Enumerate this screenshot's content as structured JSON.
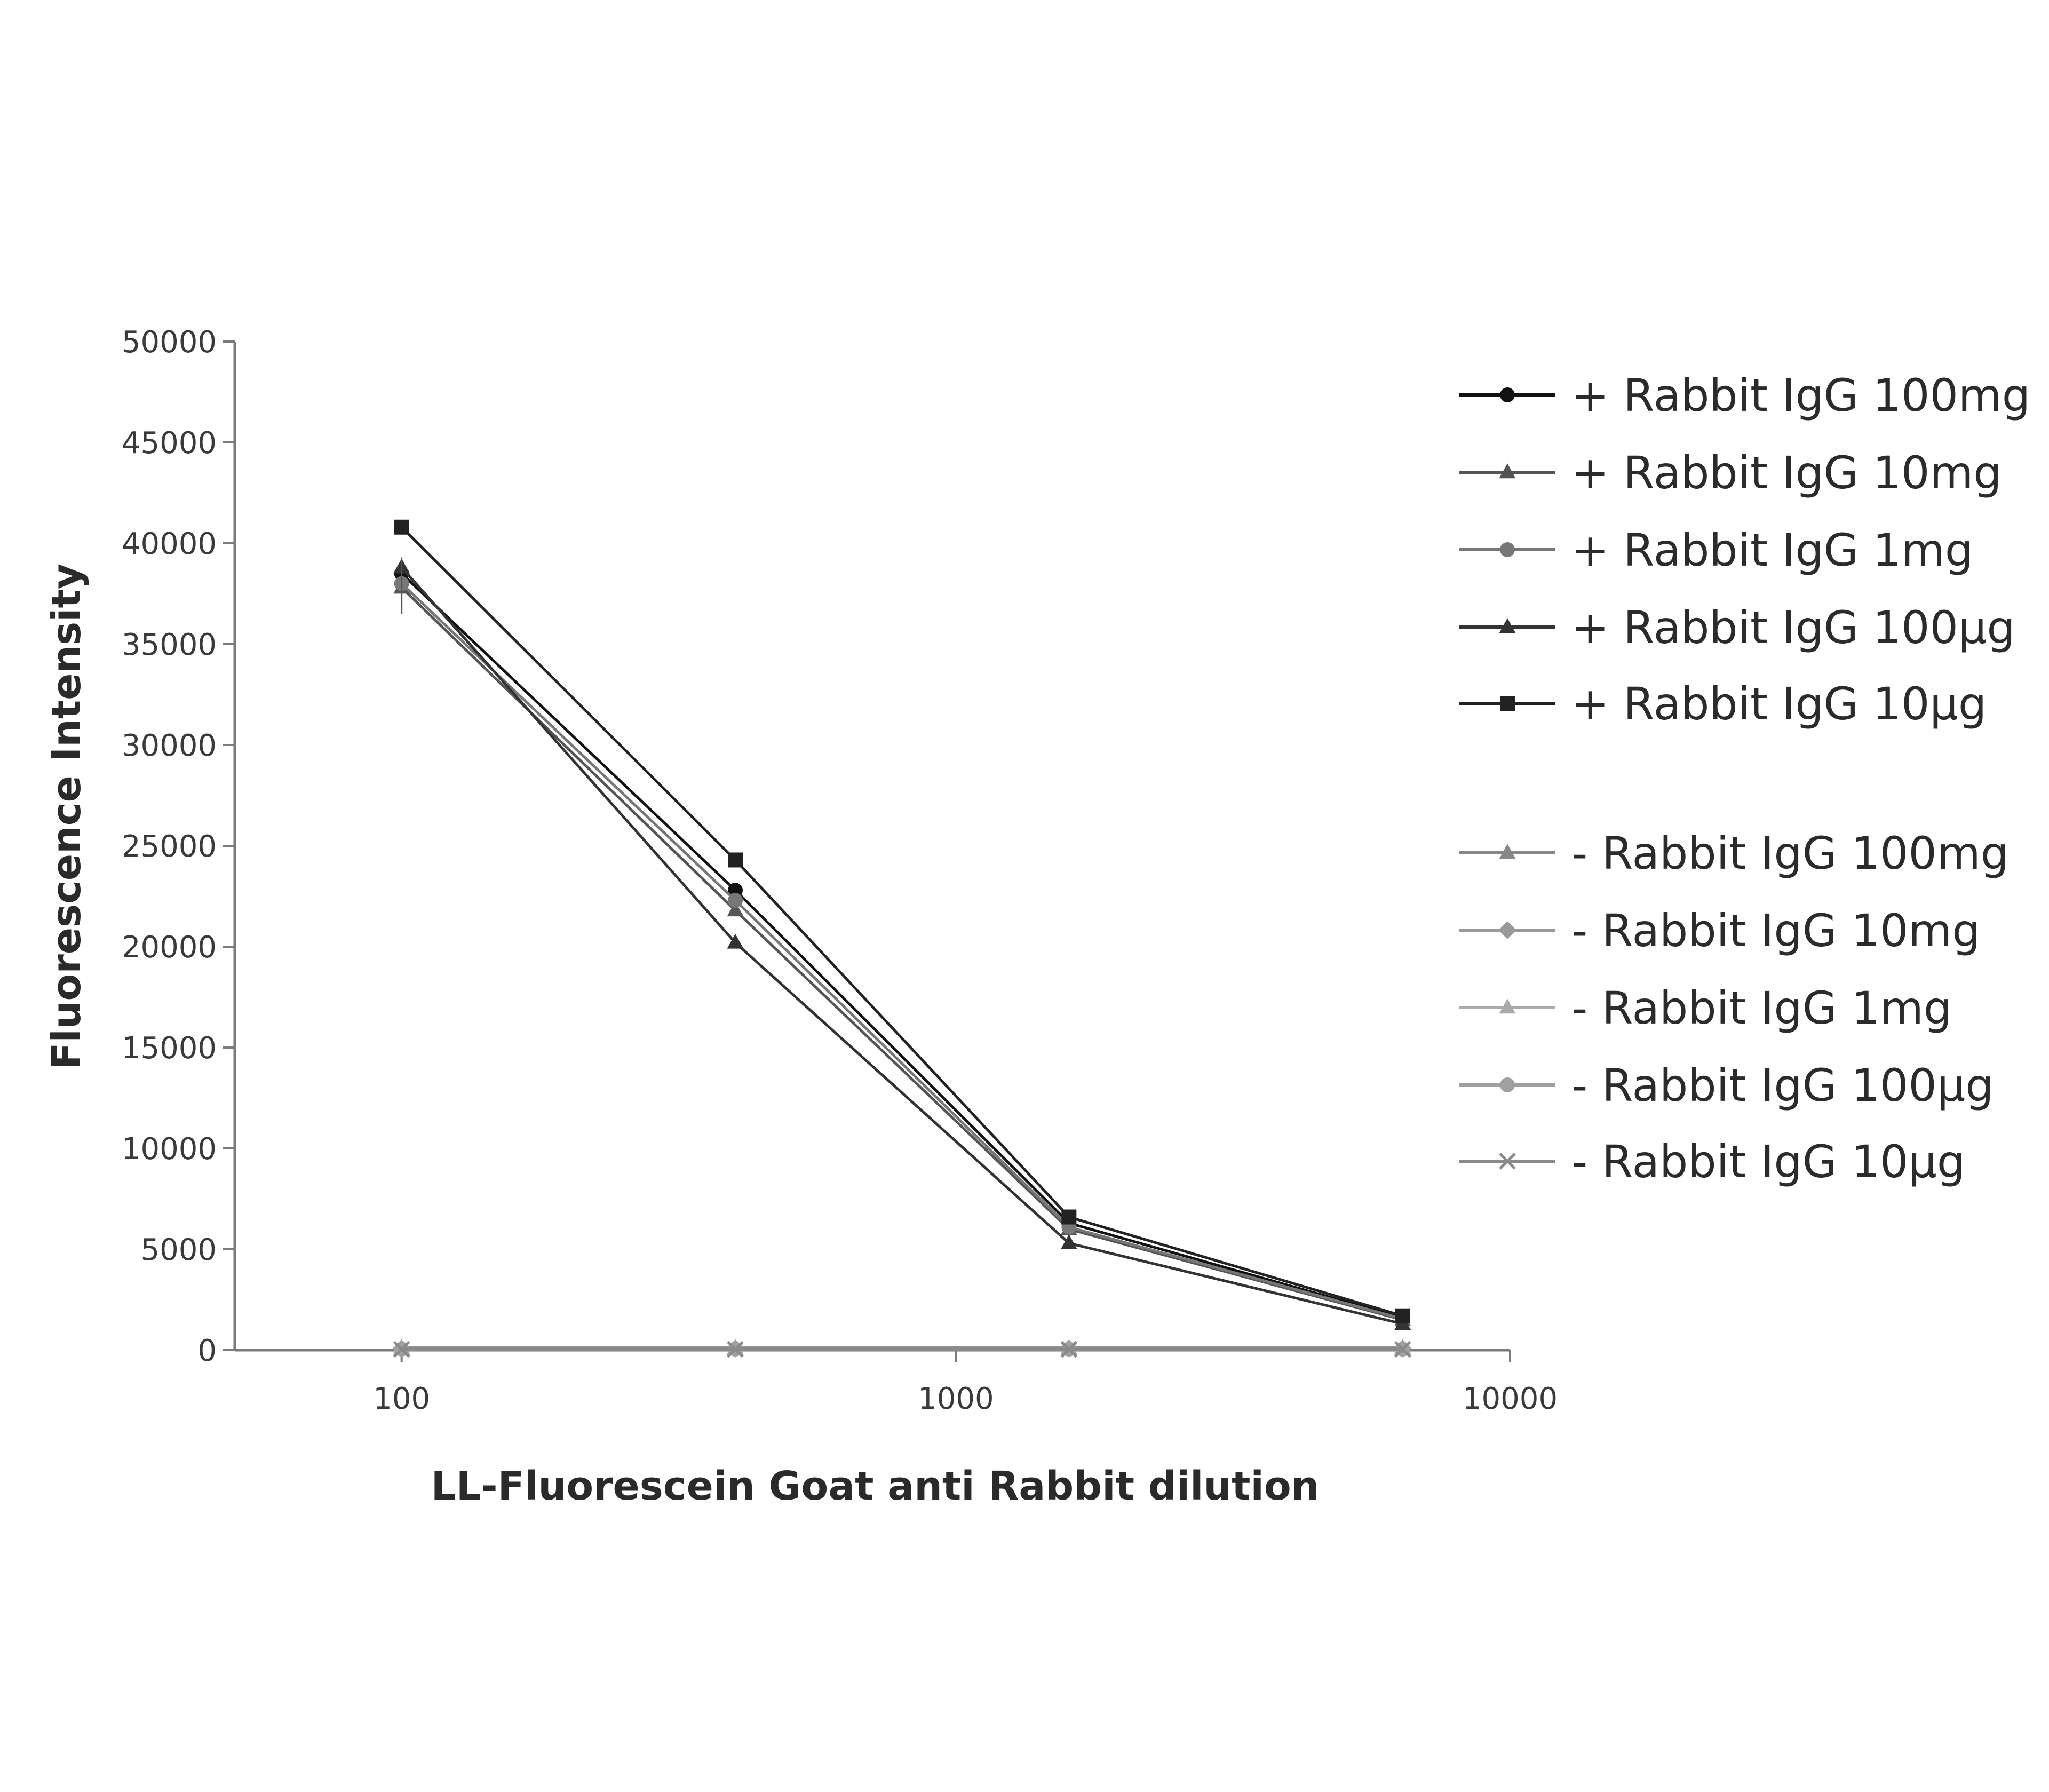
{
  "chart_data": {
    "type": "line",
    "title": "",
    "xlabel": "LL-Fluorescein Goat anti Rabbit dilution",
    "ylabel": "Fluorescence Intensity",
    "xscale": "log",
    "xlim": [
      50,
      10000
    ],
    "ylim": [
      0,
      50000
    ],
    "x_ticks": [
      100,
      1000,
      10000
    ],
    "x_tick_labels": [
      "100",
      "1000",
      "10000"
    ],
    "y_ticks": [
      0,
      5000,
      10000,
      15000,
      20000,
      25000,
      30000,
      35000,
      40000,
      45000,
      50000
    ],
    "y_tick_labels": [
      "0",
      "5000",
      "10000",
      "15000",
      "20000",
      "25000",
      "30000",
      "35000",
      "40000",
      "45000",
      "50000"
    ],
    "grid": false,
    "legend_position": "right",
    "x": [
      100,
      400,
      1600,
      6400
    ],
    "series": [
      {
        "name": "+ Rabbit IgG 100mg",
        "values": [
          38500,
          22800,
          6300,
          1600
        ],
        "color": "#111111",
        "marker": "circle"
      },
      {
        "name": "+ Rabbit IgG 10mg",
        "values": [
          37800,
          21800,
          6000,
          1500
        ],
        "color": "#555555",
        "marker": "triangle"
      },
      {
        "name": "+ Rabbit IgG 1mg",
        "values": [
          38000,
          22300,
          6100,
          1550
        ],
        "color": "#777777",
        "marker": "circle"
      },
      {
        "name": "+ Rabbit IgG 100µg",
        "values": [
          38800,
          20200,
          5300,
          1300
        ],
        "color": "#333333",
        "marker": "triangle"
      },
      {
        "name": "+ Rabbit IgG 10µg",
        "values": [
          40800,
          24300,
          6600,
          1700
        ],
        "color": "#222222",
        "marker": "square"
      },
      {
        "name": "- Rabbit IgG 100mg",
        "values": [
          100,
          100,
          100,
          100
        ],
        "color": "#888888",
        "marker": "triangle"
      },
      {
        "name": "- Rabbit IgG 10mg",
        "values": [
          80,
          80,
          80,
          80
        ],
        "color": "#999999",
        "marker": "diamond"
      },
      {
        "name": "- Rabbit IgG 1mg",
        "values": [
          60,
          60,
          60,
          60
        ],
        "color": "#aaaaaa",
        "marker": "triangle"
      },
      {
        "name": "- Rabbit IgG 100µg",
        "values": [
          50,
          50,
          50,
          50
        ],
        "color": "#a0a0a0",
        "marker": "circle"
      },
      {
        "name": "- Rabbit IgG 10µg",
        "values": [
          40,
          40,
          40,
          40
        ],
        "color": "#8a8a8a",
        "marker": "cross"
      }
    ]
  }
}
